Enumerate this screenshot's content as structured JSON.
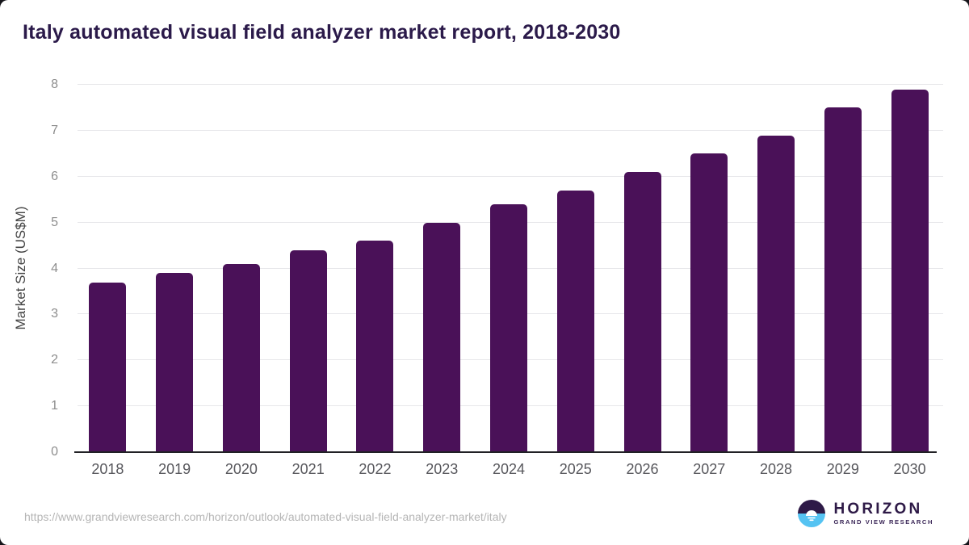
{
  "title": "Italy automated visual field analyzer market report, 2018-2030",
  "chart_data": {
    "type": "bar",
    "categories": [
      "2018",
      "2019",
      "2020",
      "2021",
      "2022",
      "2023",
      "2024",
      "2025",
      "2026",
      "2027",
      "2028",
      "2029",
      "2030"
    ],
    "values": [
      3.7,
      3.9,
      4.1,
      4.4,
      4.6,
      5.0,
      5.4,
      5.7,
      6.1,
      6.5,
      6.9,
      7.5,
      7.9
    ],
    "title": "Italy automated visual field analyzer market report, 2018-2030",
    "xlabel": "",
    "ylabel": "Market Size (US$M)",
    "ylim": [
      0,
      8
    ],
    "yticks": [
      0,
      1,
      2,
      3,
      4,
      5,
      6,
      7,
      8
    ],
    "grid": true,
    "legend": "none",
    "bar_color": "#4a1158"
  },
  "footer": {
    "source_url": "https://www.grandviewresearch.com/horizon/outlook/automated-visual-field-analyzer-market/italy",
    "logo": {
      "name": "HORIZON",
      "subtitle": "GRAND VIEW RESEARCH",
      "icon": "horizon-sun-icon",
      "icon_colors": {
        "top": "#2e1a47",
        "bottom": "#55c3f2",
        "sun": "#ffffff"
      }
    }
  },
  "colors": {
    "bar": "#4a1158",
    "title_text": "#2b1a4a",
    "gridline": "#e7e7ea",
    "axis_line": "#212125",
    "ytick_text": "#8d8d8d",
    "xtick_text": "#57575c",
    "axis_title_text": "#454545",
    "url_text": "#b5b5b5"
  }
}
